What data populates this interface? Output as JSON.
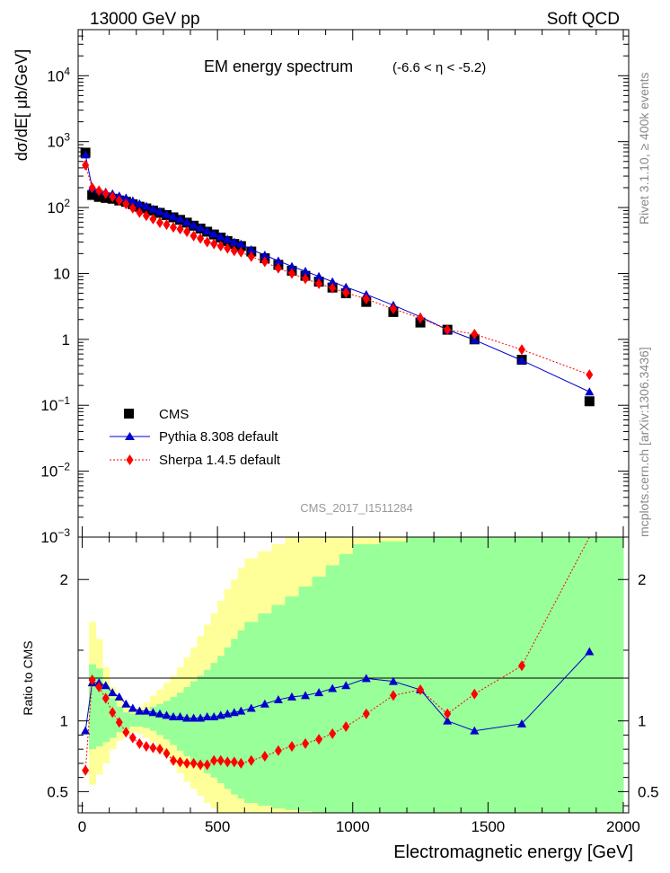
{
  "header": {
    "left": "13000 GeV pp",
    "right": "Soft QCD",
    "plot_title": "EM energy spectrum",
    "plot_range": "(-6.6 < η < -5.2)",
    "analysis_id": "CMS_2017_I1511284",
    "side_top": "Rivet 3.1.10, ≥ 400k events",
    "side_bottom": "mcplots.cern.ch [arXiv:1306.3436]"
  },
  "legend": {
    "cms": "CMS",
    "pythia": "Pythia 8.308 default",
    "sherpa": "Sherpa 1.4.5 default"
  },
  "axes": {
    "ylabel_main": "dσ/dE[ μb/GeV]",
    "ylabel_ratio": "Ratio to CMS",
    "xlabel": "Electromagnetic energy [GeV]"
  },
  "chart_data": {
    "type": "scatter",
    "x_unit": "GeV",
    "xlim": [
      -15,
      2020
    ],
    "main": {
      "yscale": "log",
      "ylim": [
        0.001,
        50000
      ],
      "yticks": [
        "10^-3",
        "10^-2",
        "10^-1",
        "1",
        "10",
        "10^2",
        "10^3",
        "10^4"
      ],
      "x": [
        12,
        37,
        62,
        87,
        112,
        137,
        162,
        187,
        212,
        237,
        262,
        287,
        312,
        337,
        362,
        387,
        412,
        437,
        462,
        487,
        512,
        537,
        562,
        587,
        625,
        675,
        725,
        775,
        825,
        875,
        925,
        975,
        1050,
        1150,
        1250,
        1350,
        1450,
        1625,
        1875
      ],
      "series": [
        {
          "name": "CMS",
          "color": "#000000",
          "marker": "square",
          "values": [
            680,
            155,
            145,
            140,
            136,
            128,
            122,
            112,
            103,
            97,
            90,
            83,
            77,
            71,
            65,
            59,
            53,
            48,
            43,
            39,
            35,
            31,
            28,
            26,
            21.5,
            17,
            13.5,
            11,
            9.2,
            7.5,
            6.1,
            5.0,
            3.7,
            2.6,
            1.8,
            1.4,
            1.0,
            0.49,
            0.115
          ]
        },
        {
          "name": "Pythia 8.308 default",
          "color": "#0000cc",
          "marker": "triangle",
          "values": [
            630,
            200,
            185,
            172,
            162,
            150,
            140,
            127,
            114,
            105,
            95,
            87,
            79,
            73,
            67,
            60,
            54,
            49,
            44,
            40,
            36,
            33,
            30,
            28,
            23,
            19,
            15.5,
            12.8,
            10.8,
            9.0,
            7.5,
            6.2,
            4.8,
            3.3,
            2.2,
            1.4,
            0.98,
            0.48,
            0.16
          ]
        },
        {
          "name": "Sherpa 1.4.5 default",
          "color": "#ff0000",
          "marker": "diamond",
          "values": [
            440,
            200,
            180,
            163,
            145,
            128,
            113,
            98,
            84,
            75,
            67,
            59,
            55,
            50,
            47,
            43,
            37,
            34,
            30,
            28,
            26,
            24,
            22,
            21,
            18,
            15,
            12,
            10,
            8.3,
            7.0,
            6.0,
            5.1,
            4.1,
            2.9,
            2.1,
            1.4,
            1.2,
            0.7,
            0.29
          ]
        }
      ]
    },
    "ratio": {
      "ylim": [
        0.35,
        2.3
      ],
      "yticks": [
        "0.5",
        "1",
        "2"
      ],
      "xticks": [
        "0",
        "500",
        "1000",
        "1500",
        "2000"
      ],
      "series": [
        {
          "name": "Pythia 8.308 default",
          "values": [
            0.93,
            1.27,
            1.27,
            1.25,
            1.2,
            1.17,
            1.12,
            1.09,
            1.07,
            1.07,
            1.06,
            1.05,
            1.04,
            1.03,
            1.03,
            1.02,
            1.02,
            1.02,
            1.03,
            1.03,
            1.04,
            1.05,
            1.06,
            1.07,
            1.09,
            1.12,
            1.15,
            1.17,
            1.18,
            1.2,
            1.23,
            1.25,
            1.3,
            1.28,
            1.22,
            1.0,
            0.93,
            0.98,
            1.49
          ]
        },
        {
          "name": "Sherpa 1.4.5 default",
          "values": [
            0.65,
            1.29,
            1.24,
            1.16,
            1.06,
            0.99,
            0.92,
            0.88,
            0.84,
            0.82,
            0.81,
            0.8,
            0.77,
            0.72,
            0.71,
            0.7,
            0.7,
            0.69,
            0.69,
            0.72,
            0.72,
            0.71,
            0.71,
            0.7,
            0.72,
            0.75,
            0.79,
            0.82,
            0.84,
            0.87,
            0.91,
            0.96,
            1.05,
            1.18,
            1.22,
            1.05,
            1.19,
            1.39,
            2.3
          ]
        }
      ],
      "bands": {
        "x_edges": [
          0,
          25,
          50,
          75,
          100,
          125,
          150,
          175,
          200,
          225,
          250,
          275,
          300,
          325,
          350,
          375,
          400,
          425,
          450,
          475,
          500,
          525,
          550,
          575,
          600,
          650,
          700,
          750,
          800,
          850,
          900,
          950,
          1000,
          1100,
          1200,
          1300,
          1400,
          1500,
          1750,
          2000
        ],
        "green_lo": [
          1.0,
          0.8,
          0.82,
          0.85,
          0.88,
          0.92,
          0.94,
          0.96,
          0.96,
          0.95,
          0.93,
          0.9,
          0.87,
          0.83,
          0.79,
          0.75,
          0.71,
          0.67,
          0.63,
          0.6,
          0.56,
          0.52,
          0.48,
          0.45,
          0.42,
          0.4,
          0.38,
          0.37,
          0.36,
          0.35,
          0.35,
          0.35,
          0.35,
          0.35,
          0.35,
          0.35,
          0.35,
          0.35,
          0.35
        ],
        "green_hi": [
          1.0,
          1.4,
          1.37,
          1.25,
          1.16,
          1.1,
          1.06,
          1.05,
          1.06,
          1.07,
          1.1,
          1.12,
          1.14,
          1.17,
          1.2,
          1.24,
          1.28,
          1.32,
          1.36,
          1.41,
          1.46,
          1.52,
          1.58,
          1.64,
          1.7,
          1.76,
          1.82,
          1.88,
          1.95,
          2.02,
          2.1,
          2.18,
          2.25,
          2.27,
          2.3,
          2.3,
          2.3,
          2.3,
          2.3
        ],
        "yellow_lo": [
          1.0,
          0.55,
          0.62,
          0.7,
          0.8,
          0.86,
          0.9,
          0.92,
          0.91,
          0.88,
          0.85,
          0.8,
          0.75,
          0.69,
          0.63,
          0.57,
          0.52,
          0.47,
          0.42,
          0.38,
          0.35,
          0.35,
          0.35,
          0.35,
          0.35,
          0.35,
          0.35,
          0.35,
          0.35,
          0.35,
          0.35,
          0.35,
          0.35,
          0.35,
          0.35,
          0.35,
          0.35,
          0.35,
          0.35
        ],
        "yellow_hi": [
          1.0,
          1.7,
          1.58,
          1.38,
          1.24,
          1.15,
          1.1,
          1.08,
          1.1,
          1.13,
          1.18,
          1.22,
          1.27,
          1.32,
          1.38,
          1.45,
          1.52,
          1.6,
          1.68,
          1.76,
          1.85,
          1.93,
          2.0,
          2.08,
          2.15,
          2.2,
          2.25,
          2.3,
          2.3,
          2.3,
          2.3,
          2.3,
          2.3,
          2.3,
          2.3,
          2.3,
          2.3,
          2.3,
          2.3
        ]
      }
    }
  }
}
